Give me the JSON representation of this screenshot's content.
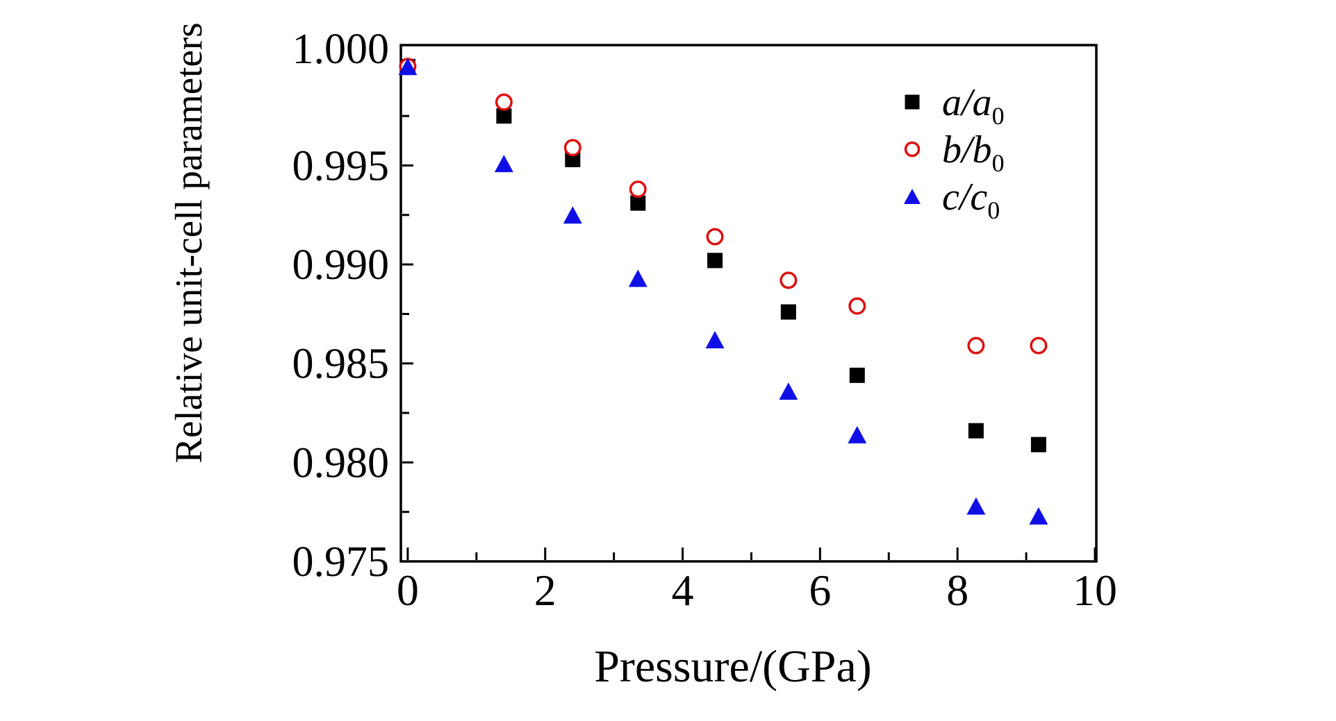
{
  "figure": {
    "background_color": "#ffffff",
    "frame_color": "#000000"
  },
  "chart_data": {
    "type": "scatter",
    "title": "",
    "xlabel": "Pressure/(GPa)",
    "ylabel": "Relative unit-cell parameters",
    "xlim": [
      -0.1,
      10.02
    ],
    "ylim": [
      0.975,
      1.00108
    ],
    "grid": false,
    "legend_position": "upper right",
    "x_major_ticks": [
      0,
      2,
      4,
      6,
      8,
      10
    ],
    "x_major_tick_labels": [
      "0",
      "2",
      "4",
      "6",
      "8",
      "10"
    ],
    "x_minor_ticks": [
      1,
      3,
      5,
      7,
      9
    ],
    "y_major_ticks": [
      0.975,
      0.98,
      0.985,
      0.99,
      0.995,
      1.0
    ],
    "y_major_tick_labels": [
      "0.975",
      "0.980",
      "0.985",
      "0.990",
      "0.995",
      "1.000"
    ],
    "y_minor_ticks": [
      0.9775,
      0.9825,
      0.9875,
      0.9925,
      0.9975
    ],
    "x": [
      0,
      1.4,
      2.4,
      3.35,
      4.47,
      5.54,
      6.54,
      8.27,
      9.18
    ],
    "series": [
      {
        "name": "a-a0",
        "label_main": "a/a",
        "label_sub": "0",
        "marker": "square",
        "color": "#000000",
        "values": [
          1.0,
          0.9975,
          0.9953,
          0.9931,
          0.9902,
          0.9876,
          0.9844,
          0.9816,
          0.9809
        ]
      },
      {
        "name": "b-b0",
        "label_main": "b/b",
        "label_sub": "0",
        "marker": "open-circle",
        "color": "#dd0f0f",
        "values": [
          1.0,
          0.9982,
          0.9959,
          0.9938,
          0.9914,
          0.9892,
          0.9879,
          0.9859,
          0.9859
        ]
      },
      {
        "name": "c-c0",
        "label_main": "c/c",
        "label_sub": "0",
        "marker": "triangle",
        "color": "#1010e6",
        "values": [
          1.0,
          0.9951,
          0.9925,
          0.9893,
          0.9862,
          0.9836,
          0.9814,
          0.9778,
          0.9773
        ]
      }
    ]
  }
}
